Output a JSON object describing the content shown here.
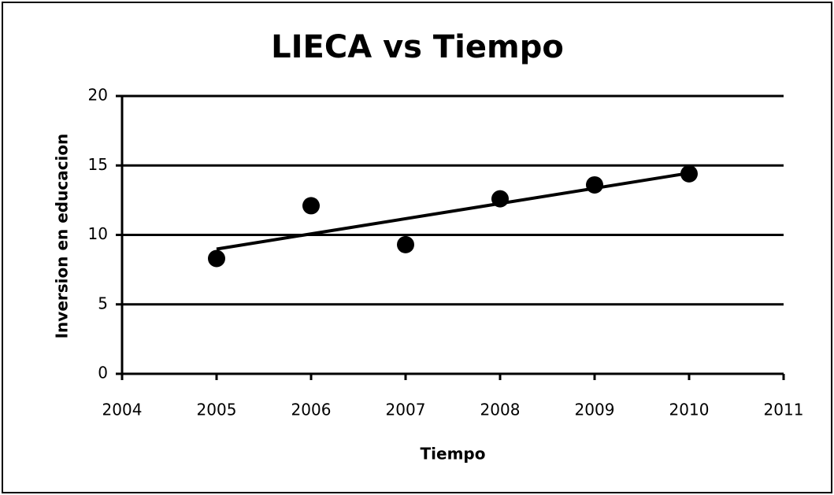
{
  "chart_data": {
    "type": "scatter",
    "title": "LIECA vs Tiempo",
    "xlabel": "Tiempo",
    "ylabel": "Inversion en educacion",
    "x": [
      2005,
      2006,
      2007,
      2008,
      2009,
      2010
    ],
    "values": [
      8.3,
      12.1,
      9.3,
      12.6,
      13.6,
      14.4
    ],
    "color": "#000000",
    "trendline": {
      "x": [
        2005,
        2010
      ],
      "values": [
        8.98,
        14.45
      ]
    },
    "xlim": [
      2004,
      2011
    ],
    "xticks": [
      2004,
      2005,
      2006,
      2007,
      2008,
      2009,
      2010,
      2011
    ],
    "ylim": [
      0,
      20
    ],
    "yticks": [
      0,
      5,
      10,
      15,
      20
    ],
    "grid": true
  }
}
